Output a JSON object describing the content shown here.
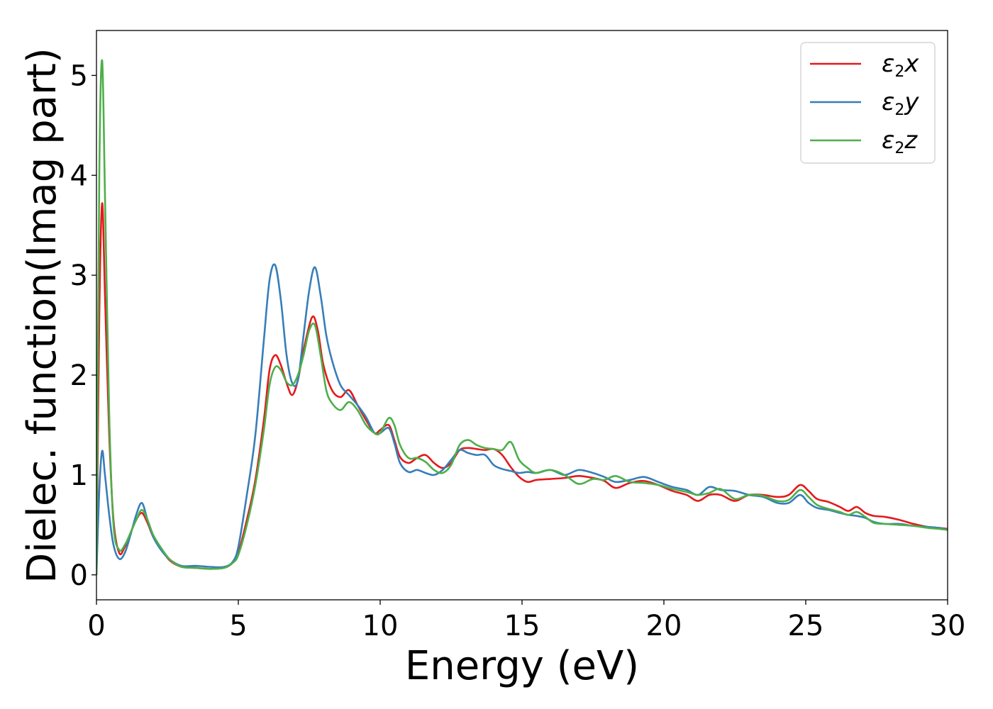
{
  "chart_data": {
    "type": "line",
    "title": "",
    "xlabel": "Energy (eV)",
    "ylabel": "Dielec. function(Imag part)",
    "xlim": [
      0,
      30
    ],
    "ylim": [
      -0.25,
      5.45
    ],
    "xticks": [
      0,
      5,
      10,
      15,
      20,
      25,
      30
    ],
    "xtick_labels": [
      "0",
      "5",
      "10",
      "15",
      "20",
      "25",
      "30"
    ],
    "yticks": [
      0,
      1,
      2,
      3,
      4,
      5
    ],
    "ytick_labels": [
      "0",
      "1",
      "2",
      "3",
      "4",
      "5"
    ],
    "grid": false,
    "legend_position": "top-right",
    "series": [
      {
        "name": "ε2x",
        "legend": {
          "main": "ε",
          "sub": "2",
          "var": "x"
        },
        "color": "#e41a1c",
        "x": [
          0,
          0.1,
          0.2,
          0.3,
          0.45,
          0.6,
          0.8,
          1.0,
          1.2,
          1.4,
          1.6,
          1.8,
          2.0,
          2.3,
          2.6,
          3.0,
          3.5,
          4.0,
          4.5,
          4.8,
          5.0,
          5.3,
          5.6,
          5.9,
          6.1,
          6.3,
          6.5,
          6.7,
          6.9,
          7.1,
          7.3,
          7.6,
          7.8,
          8.0,
          8.3,
          8.6,
          8.9,
          9.2,
          9.5,
          9.8,
          10.0,
          10.3,
          10.5,
          10.7,
          11.0,
          11.3,
          11.6,
          11.9,
          12.2,
          12.5,
          12.8,
          13.1,
          13.4,
          13.7,
          14.0,
          14.3,
          14.6,
          14.9,
          15.2,
          15.5,
          16.0,
          16.5,
          17.0,
          17.5,
          17.9,
          18.3,
          18.8,
          19.3,
          19.8,
          20.3,
          20.8,
          21.2,
          21.6,
          22.0,
          22.5,
          23.0,
          23.5,
          24.0,
          24.4,
          24.8,
          25.1,
          25.4,
          25.8,
          26.2,
          26.5,
          26.8,
          27.1,
          27.4,
          27.8,
          28.3,
          28.8,
          29.3,
          29.7,
          30
        ],
        "values": [
          0.0,
          2.6,
          3.72,
          2.8,
          1.4,
          0.55,
          0.22,
          0.28,
          0.42,
          0.55,
          0.62,
          0.52,
          0.38,
          0.25,
          0.14,
          0.08,
          0.07,
          0.06,
          0.07,
          0.12,
          0.22,
          0.55,
          0.95,
          1.55,
          2.05,
          2.2,
          2.1,
          1.92,
          1.8,
          1.95,
          2.25,
          2.58,
          2.45,
          2.1,
          1.85,
          1.78,
          1.85,
          1.7,
          1.55,
          1.42,
          1.45,
          1.5,
          1.35,
          1.18,
          1.12,
          1.17,
          1.2,
          1.12,
          1.07,
          1.12,
          1.25,
          1.27,
          1.26,
          1.25,
          1.26,
          1.2,
          1.08,
          0.98,
          0.93,
          0.95,
          0.96,
          0.97,
          0.99,
          0.97,
          0.94,
          0.87,
          0.92,
          0.94,
          0.9,
          0.84,
          0.8,
          0.74,
          0.8,
          0.8,
          0.74,
          0.8,
          0.8,
          0.78,
          0.8,
          0.9,
          0.84,
          0.76,
          0.73,
          0.68,
          0.64,
          0.68,
          0.62,
          0.59,
          0.58,
          0.55,
          0.51,
          0.48,
          0.47,
          0.46
        ]
      },
      {
        "name": "ε2y",
        "legend": {
          "main": "ε",
          "sub": "2",
          "var": "y"
        },
        "color": "#377eb8",
        "x": [
          0,
          0.1,
          0.2,
          0.3,
          0.45,
          0.6,
          0.8,
          1.0,
          1.2,
          1.4,
          1.6,
          1.8,
          2.0,
          2.3,
          2.6,
          3.0,
          3.5,
          4.0,
          4.5,
          4.8,
          5.0,
          5.3,
          5.6,
          5.9,
          6.1,
          6.3,
          6.5,
          6.7,
          6.9,
          7.1,
          7.3,
          7.5,
          7.7,
          7.9,
          8.1,
          8.3,
          8.6,
          8.9,
          9.2,
          9.5,
          9.8,
          10.0,
          10.3,
          10.5,
          10.7,
          11.0,
          11.3,
          11.6,
          11.9,
          12.2,
          12.5,
          12.8,
          13.1,
          13.4,
          13.7,
          14.0,
          14.3,
          14.6,
          14.9,
          15.2,
          15.5,
          16.0,
          16.5,
          17.0,
          17.5,
          17.9,
          18.3,
          18.8,
          19.3,
          19.8,
          20.3,
          20.8,
          21.2,
          21.6,
          22.0,
          22.5,
          23.0,
          23.5,
          24.0,
          24.4,
          24.8,
          25.1,
          25.4,
          25.8,
          26.2,
          26.5,
          26.8,
          27.1,
          27.4,
          27.8,
          28.3,
          28.8,
          29.3,
          29.7,
          30
        ],
        "values": [
          0.0,
          0.85,
          1.24,
          1.0,
          0.6,
          0.3,
          0.16,
          0.22,
          0.4,
          0.6,
          0.72,
          0.55,
          0.38,
          0.24,
          0.15,
          0.09,
          0.09,
          0.08,
          0.08,
          0.13,
          0.28,
          0.8,
          1.4,
          2.35,
          2.95,
          3.1,
          2.75,
          2.2,
          1.92,
          1.95,
          2.4,
          2.85,
          3.08,
          2.8,
          2.4,
          2.15,
          1.9,
          1.8,
          1.7,
          1.58,
          1.42,
          1.42,
          1.47,
          1.32,
          1.12,
          1.03,
          1.05,
          1.02,
          1.0,
          1.05,
          1.15,
          1.25,
          1.22,
          1.2,
          1.2,
          1.1,
          1.06,
          1.04,
          1.02,
          1.03,
          1.02,
          1.05,
          1.0,
          1.05,
          1.02,
          0.98,
          0.93,
          0.95,
          0.98,
          0.93,
          0.88,
          0.85,
          0.8,
          0.88,
          0.85,
          0.84,
          0.8,
          0.78,
          0.72,
          0.72,
          0.8,
          0.72,
          0.67,
          0.65,
          0.62,
          0.6,
          0.59,
          0.57,
          0.53,
          0.51,
          0.51,
          0.49,
          0.48,
          0.47,
          0.45
        ]
      },
      {
        "name": "ε2z",
        "legend": {
          "main": "ε",
          "sub": "2",
          "var": "z"
        },
        "color": "#4daf4a",
        "x": [
          0,
          0.1,
          0.2,
          0.3,
          0.45,
          0.6,
          0.8,
          1.0,
          1.2,
          1.4,
          1.6,
          1.8,
          2.0,
          2.3,
          2.6,
          3.0,
          3.5,
          4.0,
          4.5,
          4.8,
          5.0,
          5.3,
          5.6,
          5.9,
          6.1,
          6.3,
          6.5,
          6.7,
          6.9,
          7.1,
          7.3,
          7.5,
          7.7,
          7.9,
          8.1,
          8.3,
          8.6,
          8.9,
          9.2,
          9.5,
          9.8,
          10.0,
          10.3,
          10.5,
          10.7,
          11.0,
          11.3,
          11.6,
          11.9,
          12.2,
          12.5,
          12.8,
          13.1,
          13.4,
          13.7,
          14.0,
          14.3,
          14.6,
          14.9,
          15.2,
          15.5,
          16.0,
          16.5,
          17.0,
          17.5,
          17.9,
          18.3,
          18.8,
          19.3,
          19.8,
          20.3,
          20.8,
          21.2,
          21.6,
          22.0,
          22.5,
          23.0,
          23.5,
          24.0,
          24.4,
          24.8,
          25.1,
          25.4,
          25.8,
          26.2,
          26.5,
          26.8,
          27.1,
          27.4,
          27.8,
          28.3,
          28.8,
          29.3,
          29.7,
          30
        ],
        "values": [
          0.0,
          4.0,
          5.15,
          3.8,
          1.6,
          0.5,
          0.25,
          0.3,
          0.42,
          0.55,
          0.65,
          0.55,
          0.4,
          0.26,
          0.15,
          0.08,
          0.07,
          0.06,
          0.07,
          0.12,
          0.2,
          0.5,
          0.9,
          1.45,
          1.9,
          2.08,
          2.05,
          1.93,
          1.9,
          2.0,
          2.2,
          2.45,
          2.5,
          2.2,
          1.85,
          1.72,
          1.65,
          1.73,
          1.65,
          1.5,
          1.42,
          1.42,
          1.57,
          1.5,
          1.3,
          1.17,
          1.17,
          1.13,
          1.05,
          1.02,
          1.1,
          1.3,
          1.35,
          1.3,
          1.27,
          1.26,
          1.25,
          1.33,
          1.15,
          1.07,
          1.02,
          1.05,
          1.0,
          0.91,
          0.96,
          0.95,
          0.99,
          0.93,
          0.92,
          0.9,
          0.86,
          0.83,
          0.8,
          0.82,
          0.86,
          0.76,
          0.8,
          0.79,
          0.74,
          0.75,
          0.85,
          0.78,
          0.7,
          0.66,
          0.63,
          0.6,
          0.63,
          0.58,
          0.52,
          0.51,
          0.5,
          0.49,
          0.47,
          0.46,
          0.45
        ]
      }
    ]
  }
}
